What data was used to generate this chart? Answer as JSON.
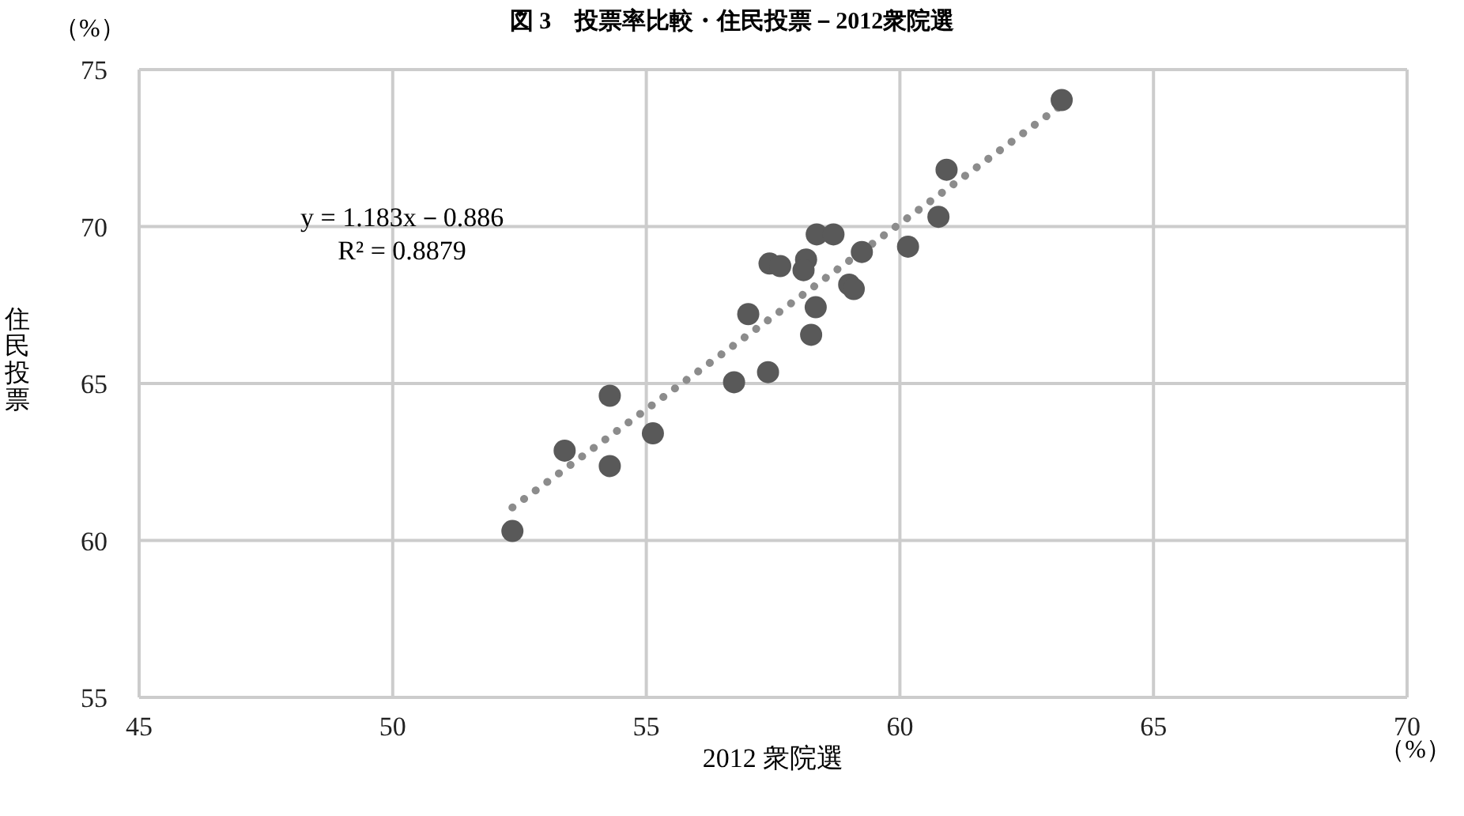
{
  "chart_data": {
    "type": "scatter",
    "title": "図 3　投票率比較・住民投票－2012衆院選",
    "xlabel": "2012 衆院選",
    "ylabel": "住民投票",
    "annotations": [
      "（%）",
      "（%）",
      "y = 1.183x－0.886",
      "R² = 0.8879"
    ],
    "xlim": [
      45,
      70
    ],
    "xticks": [
      45,
      50,
      55,
      60,
      65,
      70
    ],
    "ylim": [
      55,
      75
    ],
    "yticks": [
      55,
      60,
      65,
      70,
      75
    ],
    "grid": true,
    "marker": "circle",
    "series": [
      {
        "color": "#595959",
        "x": [
          52.36,
          53.39,
          54.28,
          54.28,
          55.13,
          56.73,
          57.4,
          58.25,
          63.19,
          60.92,
          60.76,
          60.16,
          58.36,
          58.69,
          59.25,
          57.43,
          57.64,
          58.15,
          58.1,
          59.0,
          59.09,
          58.34,
          57.01
        ],
        "values": [
          60.3,
          62.86,
          64.61,
          62.37,
          63.41,
          65.04,
          65.36,
          66.55,
          74.03,
          71.81,
          70.31,
          69.36,
          69.75,
          69.75,
          69.19,
          68.82,
          68.74,
          68.95,
          68.61,
          68.15,
          68.01,
          67.43,
          67.21
        ]
      },
      {
        "type": "line",
        "color": "#8c8c8c",
        "line_style": "dotted",
        "marker": "none",
        "x": [
          52.36,
          63.19
        ],
        "values": [
          61.05,
          73.87
        ]
      }
    ]
  }
}
